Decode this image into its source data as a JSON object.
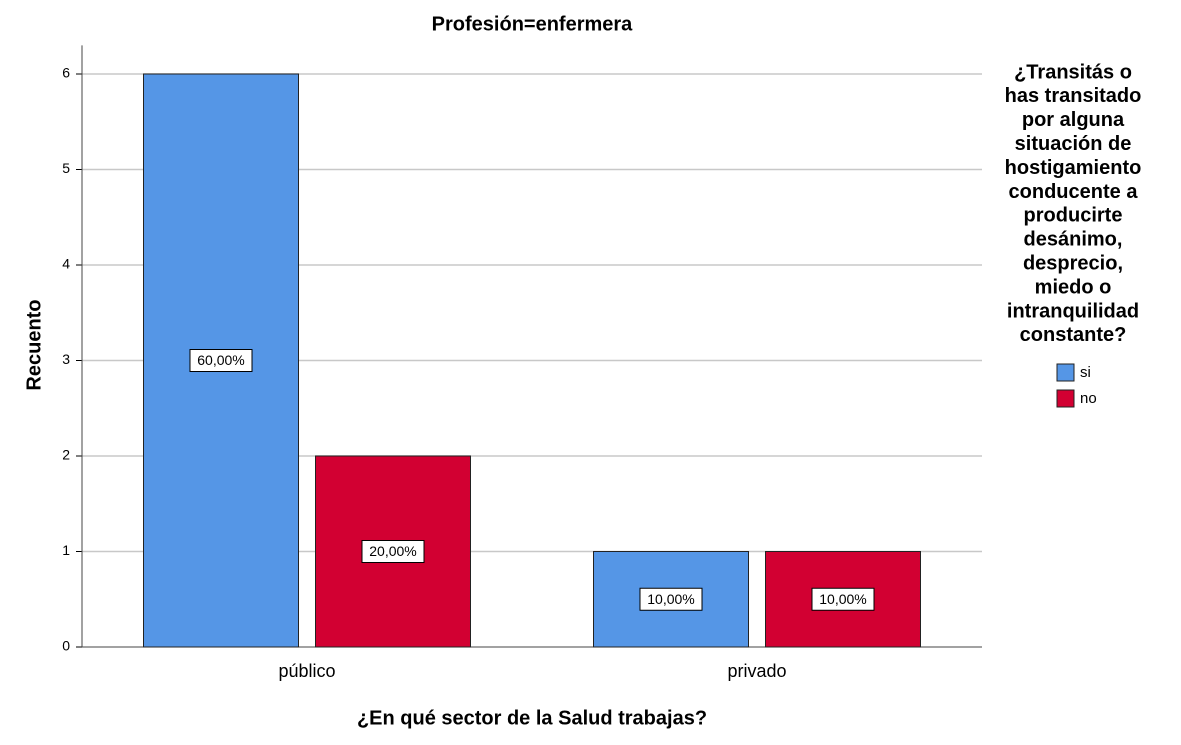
{
  "chart_data": {
    "type": "bar",
    "title": "Profesión=enfermera",
    "x_label": "¿En qué sector de la Salud trabajas?",
    "y_label": "Recuento",
    "categories": [
      "público",
      "privado"
    ],
    "series": [
      {
        "name": "si",
        "color": "#5596e6",
        "values": [
          6,
          1
        ],
        "percent_labels": [
          {
            "value": 60,
            "label": "60,00%"
          },
          {
            "value": 10,
            "label": "10,00%"
          }
        ]
      },
      {
        "name": "no",
        "color": "#d20032",
        "values": [
          2,
          1
        ],
        "percent_labels": [
          {
            "value": 20,
            "label": "20,00%"
          },
          {
            "value": 10,
            "label": "10,00%"
          }
        ]
      }
    ],
    "ylim": [
      0,
      6.3
    ],
    "yticks": [
      0,
      1,
      2,
      3,
      4,
      5,
      6
    ],
    "grid": true,
    "legend": {
      "position": "right",
      "title": [
        "¿Transitás o",
        "has transitado",
        "por alguna",
        "situación de",
        "hostigamiento",
        "conducente a",
        "producirte",
        "desánimo,",
        "desprecio,",
        "miedo o",
        "intranquilidad",
        "constante?"
      ]
    }
  }
}
